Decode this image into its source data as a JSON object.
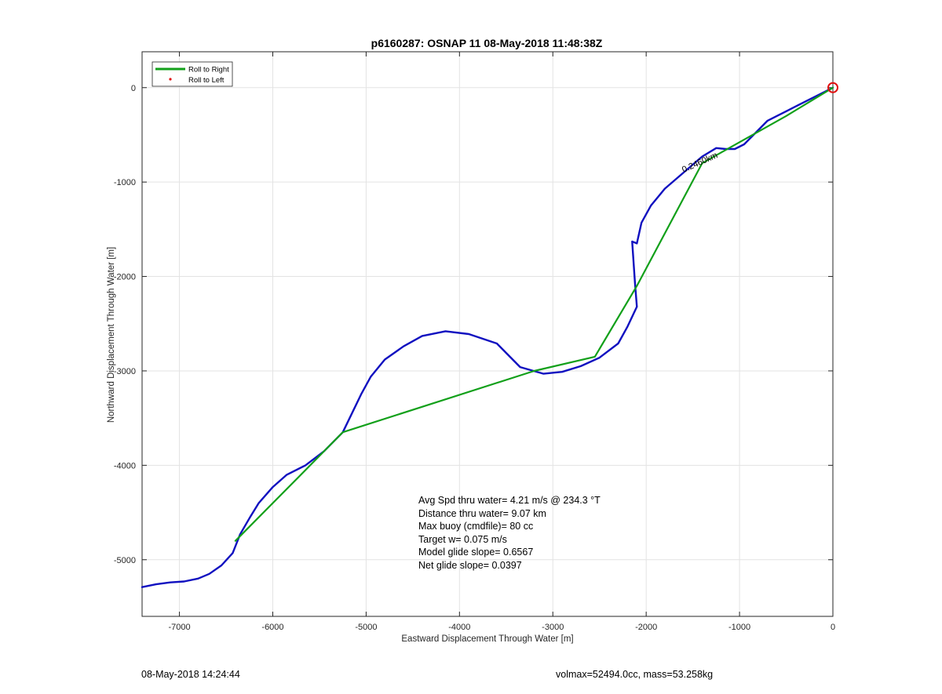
{
  "chart_data": {
    "type": "line",
    "title": "p6160287: OSNAP 11 08-May-2018 11:48:38Z",
    "xlabel": "Eastward Displacement Through Water [m]",
    "ylabel": "Northward Displacement Through Water [m]",
    "xlim": [
      -7400,
      0
    ],
    "ylim": [
      -5600,
      380
    ],
    "xticks": [
      -7000,
      -6000,
      -5000,
      -4000,
      -3000,
      -2000,
      -1000,
      0
    ],
    "yticks": [
      0,
      -1000,
      -2000,
      -3000,
      -4000,
      -5000
    ],
    "grid": true,
    "legend": {
      "placement": "top-left",
      "entries": [
        {
          "label": "Roll to Right",
          "color": "#12a01a",
          "style": "line"
        },
        {
          "label": "Roll to Left",
          "color": "#e01010",
          "style": "dot"
        }
      ]
    },
    "series": [
      {
        "color": "#1010c0",
        "x": [
          0,
          -100,
          -200,
          -300,
          -400,
          -500,
          -600,
          -700,
          -850,
          -950,
          -1050,
          -1150,
          -1250,
          -1400,
          -1600,
          -1800,
          -1950,
          -2050,
          -2100,
          -2150,
          -2120,
          -2100,
          -2200,
          -2300,
          -2500,
          -2700,
          -2900,
          -3100,
          -3350,
          -3600,
          -3900,
          -4150,
          -4400,
          -4600,
          -4800,
          -4950,
          -5050,
          -5250,
          -5450,
          -5650,
          -5850,
          -6000,
          -6150,
          -6250,
          -6350,
          -6430,
          -6550,
          -6680,
          -6800,
          -6950,
          -7100,
          -7250,
          -7400
        ],
        "y": [
          0,
          -50,
          -100,
          -150,
          -200,
          -250,
          -300,
          -350,
          -500,
          -600,
          -650,
          -650,
          -640,
          -730,
          -900,
          -1070,
          -1250,
          -1430,
          -1650,
          -1630,
          -2070,
          -2320,
          -2530,
          -2710,
          -2860,
          -2950,
          -3010,
          -3030,
          -2960,
          -2710,
          -2610,
          -2580,
          -2630,
          -2740,
          -2880,
          -3060,
          -3240,
          -3650,
          -3850,
          -4000,
          -4100,
          -4230,
          -4400,
          -4560,
          -4730,
          -4930,
          -5060,
          -5150,
          -5200,
          -5230,
          -5240,
          -5260,
          -5290
        ]
      },
      {
        "color": "#12a01a",
        "x": [
          0,
          -500,
          -1400,
          -2100,
          -2550,
          -3200,
          -5250,
          -5600,
          -6400
        ],
        "y": [
          0,
          -300,
          -800,
          -2100,
          -2850,
          -3000,
          -3650,
          -4000,
          -4800
        ]
      }
    ],
    "annotations": [
      "Avg Spd thru water=  4.21 m/s @ 234.3 °T",
      "Distance thru water=  9.07 km",
      "Max buoy (cmdfile)= 80 cc",
      "Target w= 0.075 m/s",
      "Model glide slope= 0.6567",
      "Net glide slope= 0.0397"
    ],
    "segment_labels": [
      "0.2460km"
    ]
  },
  "footer": {
    "timestamp": "08-May-2018 14:24:44",
    "volmax": "volmax=52494.0cc, mass=53.258kg"
  }
}
